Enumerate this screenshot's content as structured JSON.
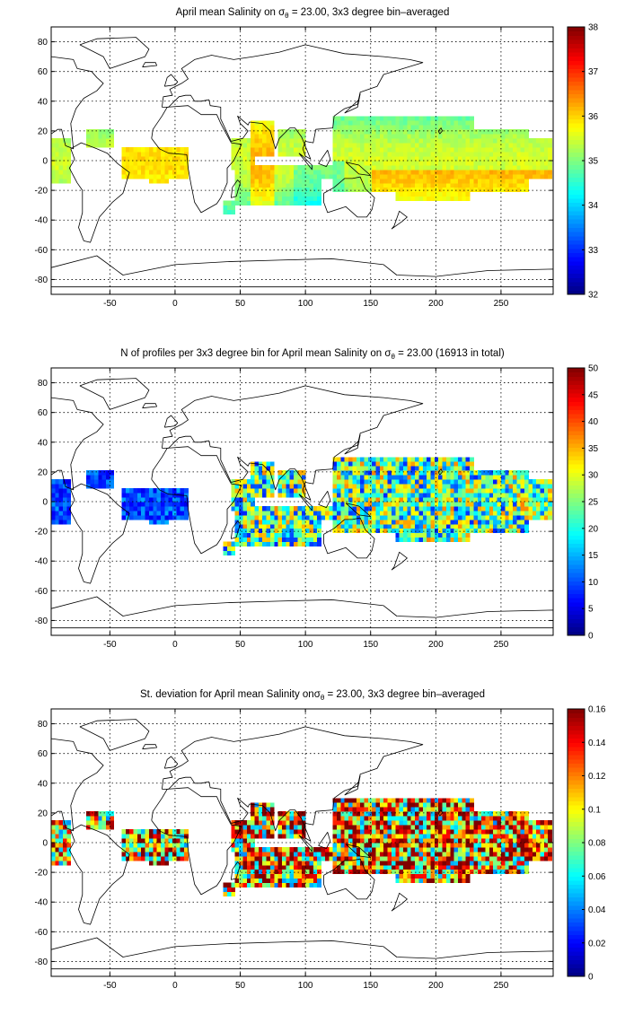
{
  "chart_data": [
    {
      "type": "heatmap",
      "title_prefix": "April mean Salinity on ",
      "title_sigma": "σ",
      "title_sub": "θ",
      "title_suffix": " = 23.00, 3x3 degree bin–averaged",
      "x_ticks": [
        "-50",
        "0",
        "50",
        "100",
        "150",
        "200",
        "250"
      ],
      "y_ticks": [
        "80",
        "60",
        "40",
        "20",
        "0",
        "-20",
        "-40",
        "-60",
        "-80"
      ],
      "xlim": [
        -95,
        290
      ],
      "ylim": [
        -90,
        90
      ],
      "colorbar": {
        "min": 32,
        "max": 38,
        "ticks": [
          "38",
          "37",
          "36",
          "35",
          "34",
          "33",
          "32"
        ],
        "colormap": "jet"
      },
      "grid": true
    },
    {
      "type": "heatmap",
      "title_prefix": "N of profiles per 3x3 degree bin for April mean Salinity on ",
      "title_sigma": "σ",
      "title_sub": "θ",
      "title_suffix": " = 23.00 (16913 in total)",
      "x_ticks": [
        "-50",
        "0",
        "50",
        "100",
        "150",
        "200",
        "250"
      ],
      "y_ticks": [
        "80",
        "60",
        "40",
        "20",
        "0",
        "-20",
        "-40",
        "-60",
        "-80"
      ],
      "xlim": [
        -95,
        290
      ],
      "ylim": [
        -90,
        90
      ],
      "colorbar": {
        "min": 0,
        "max": 50,
        "ticks": [
          "50",
          "45",
          "40",
          "35",
          "30",
          "25",
          "20",
          "15",
          "10",
          "5",
          "0"
        ],
        "colormap": "jet"
      },
      "grid": true
    },
    {
      "type": "heatmap",
      "title_prefix": "St. deviation for April mean Salinity on",
      "title_sigma": "σ",
      "title_sub": "θ",
      "title_suffix": " = 23.00, 3x3 degree bin–averaged",
      "x_ticks": [
        "-50",
        "0",
        "50",
        "100",
        "150",
        "200",
        "250"
      ],
      "y_ticks": [
        "80",
        "60",
        "40",
        "20",
        "0",
        "-20",
        "-40",
        "-60",
        "-80"
      ],
      "xlim": [
        -95,
        290
      ],
      "ylim": [
        -90,
        90
      ],
      "colorbar": {
        "min": 0,
        "max": 0.16,
        "ticks": [
          "0.16",
          "0.14",
          "0.12",
          "0.1",
          "0.08",
          "0.06",
          "0.04",
          "0.02",
          "0"
        ],
        "colormap": "jet"
      },
      "grid": true
    }
  ]
}
